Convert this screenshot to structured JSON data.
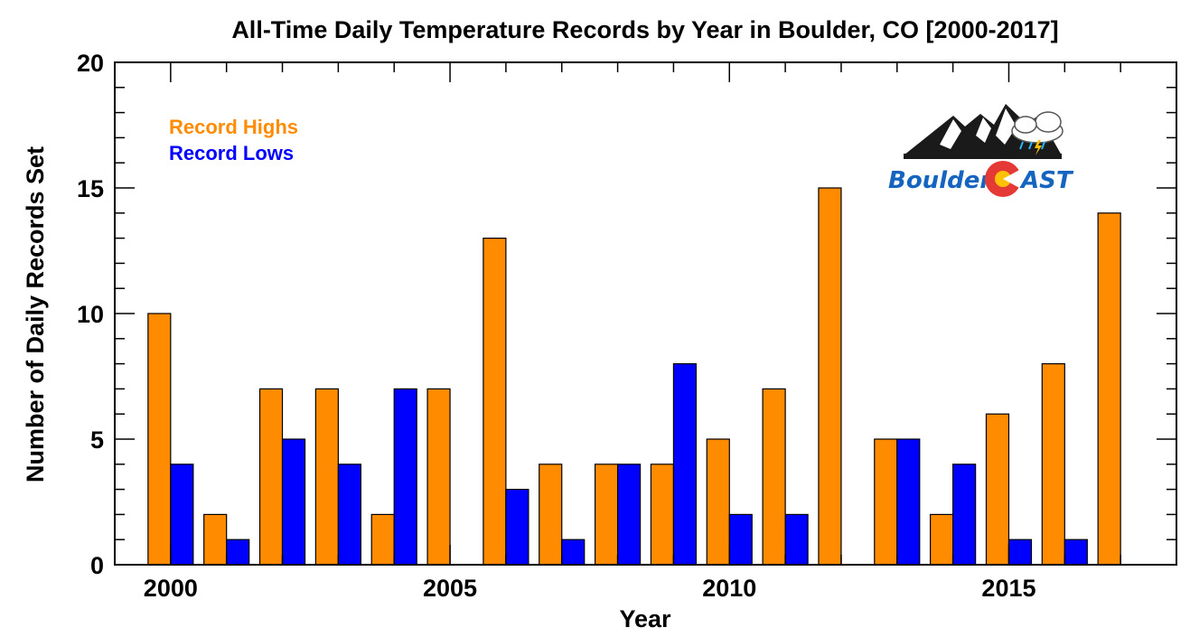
{
  "chart_data": {
    "type": "bar",
    "title": "All-Time Daily Temperature Records by Year in Boulder, CO [2000-2017]",
    "xlabel": "Year",
    "ylabel": "Number of Daily Records Set",
    "x": [
      2000,
      2001,
      2002,
      2003,
      2004,
      2005,
      2006,
      2007,
      2008,
      2009,
      2010,
      2011,
      2012,
      2013,
      2014,
      2015,
      2016,
      2017
    ],
    "xlim": [
      1999,
      2018
    ],
    "ylim": [
      0,
      20
    ],
    "x_ticks": [
      "2000",
      "2005",
      "2010",
      "2015"
    ],
    "y_ticks": [
      "0",
      "5",
      "10",
      "15",
      "20"
    ],
    "grid": false,
    "legend_position": "top-left",
    "series": [
      {
        "name": "Record Highs",
        "color": "#FF8C00",
        "values": [
          10,
          2,
          7,
          7,
          2,
          7,
          13,
          4,
          4,
          4,
          5,
          7,
          15,
          5,
          2,
          6,
          8,
          14
        ]
      },
      {
        "name": "Record Lows",
        "color": "#0000FF",
        "values": [
          4,
          1,
          5,
          4,
          7,
          0,
          3,
          1,
          4,
          8,
          2,
          2,
          0,
          5,
          4,
          1,
          1,
          0
        ]
      }
    ]
  },
  "logo": {
    "text_left": "Boulder",
    "text_right": "AST",
    "icon": "mountains-cloud-logo",
    "colors": {
      "blue": "#1565C0",
      "red": "#E53935",
      "yellow": "#FFC107",
      "dark": "#1a1a1a",
      "cloud_rain": "#29B6F6"
    }
  }
}
